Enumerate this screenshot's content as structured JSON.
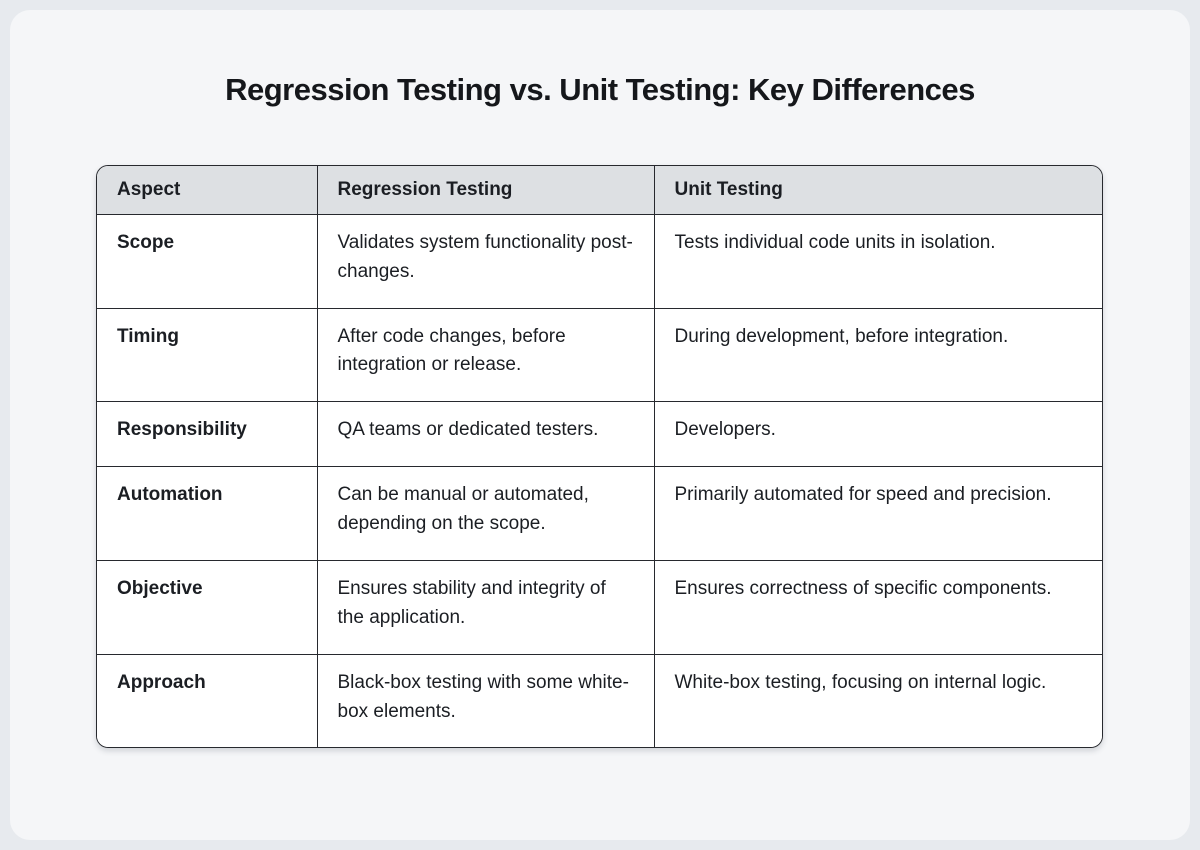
{
  "page": {
    "title": "Regression Testing vs. Unit Testing: Key Differences"
  },
  "colors": {
    "page_background": "#e7eaee",
    "card_background": "#f5f6f8",
    "header_row_background": "#dde0e3",
    "cell_background": "#ffffff",
    "table_border": "#27292e",
    "text": "#1b1e23"
  },
  "table": {
    "columns": [
      "Aspect",
      "Regression Testing",
      "Unit Testing"
    ],
    "rows": [
      {
        "aspect": "Scope",
        "regression": "Validates system functionality post-changes.",
        "unit": "Tests individual code units in isolation."
      },
      {
        "aspect": "Timing",
        "regression": "After code changes, before integration or release.",
        "unit": "During development, before integration."
      },
      {
        "aspect": "Responsibility",
        "regression": "QA teams or dedicated testers.",
        "unit": "Developers."
      },
      {
        "aspect": "Automation",
        "regression": "Can be manual or automated, depending on the scope.",
        "unit": "Primarily automated for speed and precision."
      },
      {
        "aspect": "Objective",
        "regression": "Ensures stability and integrity of the application.",
        "unit": "Ensures correctness of specific components."
      },
      {
        "aspect": "Approach",
        "regression": "Black-box testing with some white-box elements.",
        "unit": "White-box testing, focusing on internal logic."
      }
    ]
  },
  "chart_data": {
    "type": "table",
    "title": "Regression Testing vs. Unit Testing: Key Differences",
    "columns": [
      "Aspect",
      "Regression Testing",
      "Unit Testing"
    ],
    "rows": [
      [
        "Scope",
        "Validates system functionality post-changes.",
        "Tests individual code units in isolation."
      ],
      [
        "Timing",
        "After code changes, before integration or release.",
        "During development, before integration."
      ],
      [
        "Responsibility",
        "QA teams or dedicated testers.",
        "Developers."
      ],
      [
        "Automation",
        "Can be manual or automated, depending on the scope.",
        "Primarily automated for speed and precision."
      ],
      [
        "Objective",
        "Ensures stability and integrity of the application.",
        "Ensures correctness of specific components."
      ],
      [
        "Approach",
        "Black-box testing with some white-box elements.",
        "White-box testing, focusing on internal logic."
      ]
    ]
  }
}
